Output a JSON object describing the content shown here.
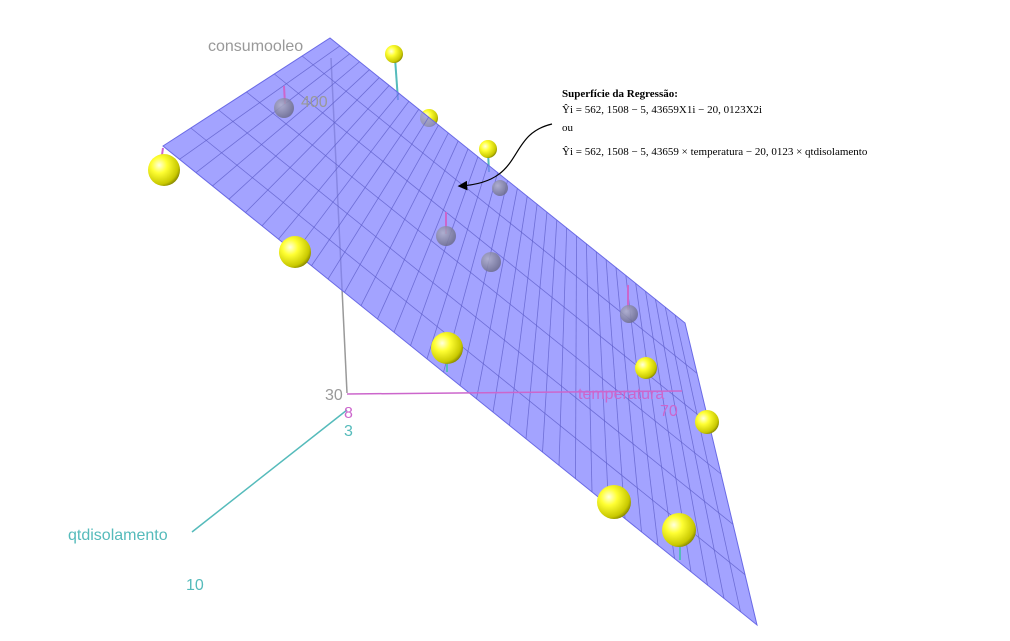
{
  "chart_data": {
    "type": "scatter",
    "subtype": "3d-scatter-with-regression-plane",
    "axes": {
      "y": {
        "label": "consumooleo",
        "tick_labels": [
          "400"
        ]
      },
      "x1": {
        "label": "temperatura",
        "tick_labels": [
          "30",
          "70"
        ]
      },
      "x2": {
        "label": "qtdisolamento",
        "tick_labels": [
          "3",
          "8",
          "10"
        ]
      }
    },
    "annotation": {
      "title": "Superfície da Regressão:",
      "line1": "Ŷi = 562, 1508 − 5, 43659X1i − 20, 0123X2i",
      "connector": "ou",
      "line2": "Ŷi = 562, 1508 − 5, 43659 × temperatura − 20, 0123 × qtdisolamento"
    },
    "regression": {
      "intercept": 562.1508,
      "b_temperatura": -5.43659,
      "b_qtdisolamento": -20.0123
    },
    "colors": {
      "plane": "#8080ff",
      "points": "#ffff00",
      "y_axis": "#999999",
      "temperatura_axis": "#cc66cc",
      "qtdisolamento_axis": "#55bbbb"
    }
  }
}
